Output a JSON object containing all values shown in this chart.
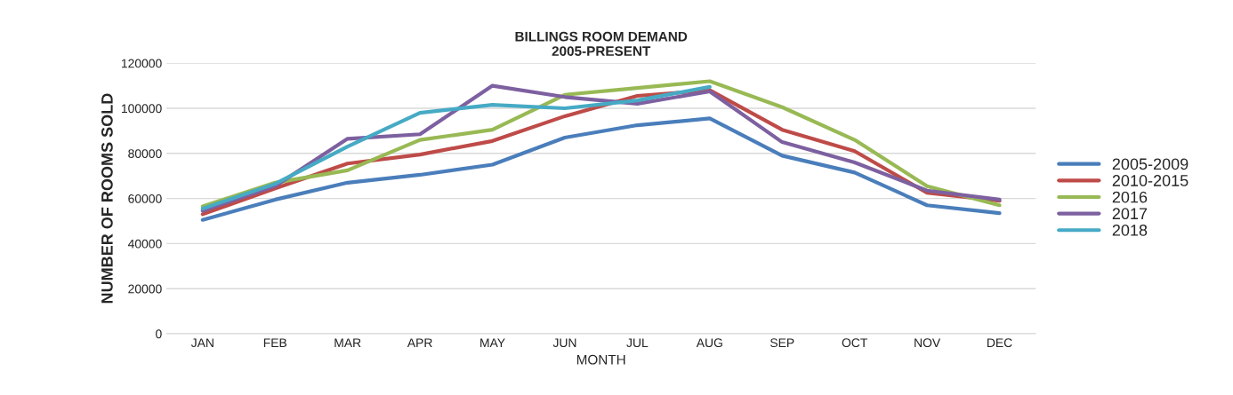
{
  "chart_data": {
    "type": "line",
    "title": "BILLINGS ROOM DEMAND\n2005-PRESENT",
    "xlabel": "MONTH",
    "ylabel": "NUMBER OF ROOMS SOLD",
    "categories": [
      "JAN",
      "FEB",
      "MAR",
      "APR",
      "MAY",
      "JUN",
      "JUL",
      "AUG",
      "SEP",
      "OCT",
      "NOV",
      "DEC"
    ],
    "series": [
      {
        "name": "2005-2009",
        "color": "#4a7ebb",
        "values": [
          50500,
          59500,
          67000,
          70500,
          75000,
          87000,
          92500,
          95500,
          79000,
          71500,
          57000,
          53500
        ]
      },
      {
        "name": "2010-2015",
        "color": "#be4b48",
        "values": [
          53000,
          64500,
          75500,
          79500,
          85500,
          96500,
          105500,
          108000,
          90500,
          81000,
          62500,
          59000
        ]
      },
      {
        "name": "2016",
        "color": "#98b954",
        "values": [
          56500,
          67000,
          72500,
          86000,
          90500,
          106000,
          109000,
          112000,
          100500,
          86000,
          65500,
          57000
        ]
      },
      {
        "name": "2017",
        "color": "#7d60a0",
        "values": [
          54500,
          65500,
          86500,
          88500,
          110000,
          105000,
          102000,
          107500,
          85000,
          76000,
          63500,
          59500
        ]
      },
      {
        "name": "2018",
        "color": "#46aac5",
        "values": [
          55500,
          66500,
          83000,
          98000,
          101500,
          100000,
          103500,
          109500,
          null,
          null,
          null,
          null
        ]
      }
    ],
    "ylim": [
      0,
      120000
    ],
    "yticks": [
      0,
      20000,
      40000,
      60000,
      80000,
      100000,
      120000
    ],
    "grid": "y",
    "legend": "right"
  }
}
